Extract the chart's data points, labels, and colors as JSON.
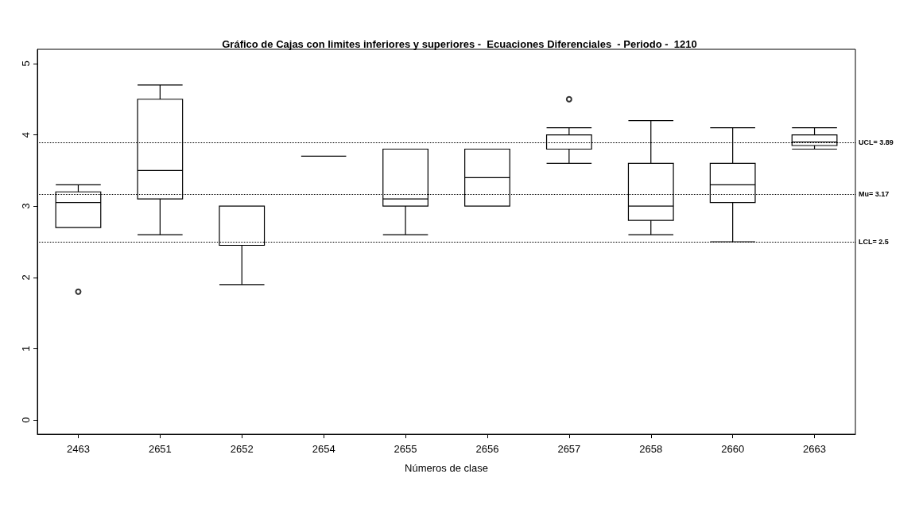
{
  "chart_data": {
    "type": "box",
    "title": "Gráfico de Cajas con limites inferiores y superiores -  Ecuaciones Diferenciales  - Periodo -  1210",
    "xlabel": "Números de clase",
    "categories": [
      "2463",
      "2651",
      "2652",
      "2654",
      "2655",
      "2656",
      "2657",
      "2658",
      "2660",
      "2663"
    ],
    "boxes": [
      {
        "low": 2.7,
        "q1": 2.7,
        "median": 3.05,
        "q3": 3.2,
        "high": 3.3,
        "outliers": [
          1.8
        ]
      },
      {
        "low": 2.6,
        "q1": 3.1,
        "median": 3.5,
        "q3": 4.5,
        "high": 4.7
      },
      {
        "low": 1.9,
        "q1": 2.45,
        "median": 3.0,
        "q3": 3.0,
        "high": 3.0
      },
      {
        "low": 3.7,
        "q1": 3.7,
        "median": 3.7,
        "q3": 3.7,
        "high": 3.7
      },
      {
        "low": 2.6,
        "q1": 3.0,
        "median": 3.1,
        "q3": 3.8,
        "high": 3.8
      },
      {
        "low": 3.0,
        "q1": 3.0,
        "median": 3.4,
        "q3": 3.8,
        "high": 3.8
      },
      {
        "low": 3.6,
        "q1": 3.8,
        "median": 4.0,
        "q3": 4.0,
        "high": 4.1,
        "outliers": [
          4.5
        ]
      },
      {
        "low": 2.6,
        "q1": 2.8,
        "median": 3.0,
        "q3": 3.6,
        "high": 4.2
      },
      {
        "low": 2.5,
        "q1": 3.05,
        "median": 3.3,
        "q3": 3.6,
        "high": 4.1
      },
      {
        "low": 3.8,
        "q1": 3.85,
        "median": 3.9,
        "q3": 4.0,
        "high": 4.1
      }
    ],
    "color": "#000000",
    "ylim": [
      -0.2,
      5.2
    ],
    "yticks": [
      0,
      1,
      2,
      3,
      4,
      5
    ],
    "grid": false,
    "ref_lines": [
      {
        "axis": "y",
        "value": 3.89,
        "label": "UCL= 3.89",
        "line_style": "dotted"
      },
      {
        "axis": "y",
        "value": 3.17,
        "label": "Mu= 3.17",
        "line_style": "dotted"
      },
      {
        "axis": "y",
        "value": 2.5,
        "label": "LCL= 2.5",
        "line_style": "dotted"
      }
    ]
  }
}
